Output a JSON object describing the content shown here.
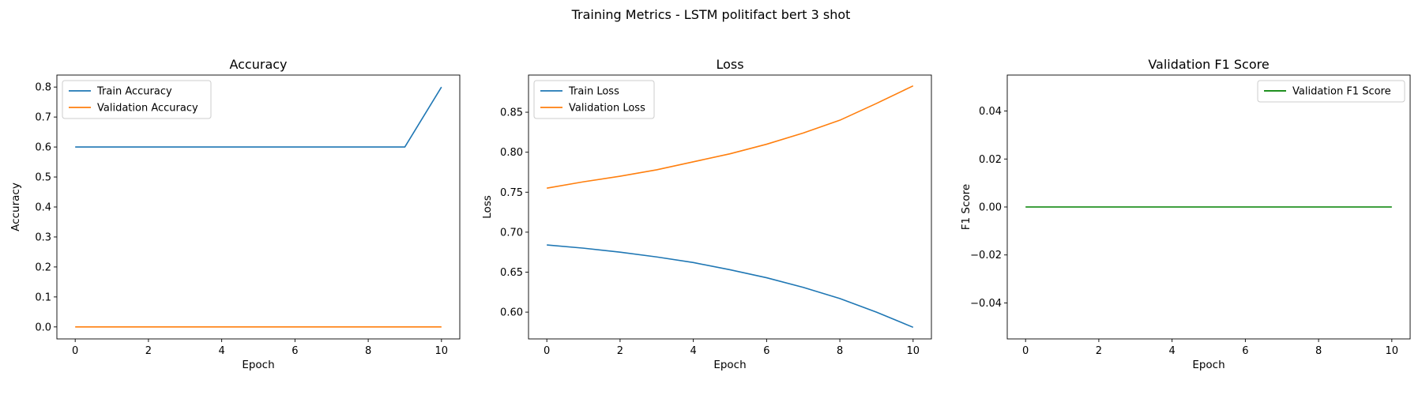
{
  "figure": {
    "suptitle": "Training Metrics - LSTM politifact bert 3 shot"
  },
  "chart_data": [
    {
      "type": "line",
      "title": "Accuracy",
      "xlabel": "Epoch",
      "ylabel": "Accuracy",
      "xlim": [
        -0.5,
        10.5
      ],
      "ylim": [
        -0.04,
        0.84
      ],
      "xticks": [
        0,
        2,
        4,
        6,
        8,
        10
      ],
      "yticks": [
        0.0,
        0.1,
        0.2,
        0.3,
        0.4,
        0.5,
        0.6,
        0.7,
        0.8
      ],
      "ytick_labels": [
        "0.0",
        "0.1",
        "0.2",
        "0.3",
        "0.4",
        "0.5",
        "0.6",
        "0.7",
        "0.8"
      ],
      "legend_loc": "upper-left",
      "grid": false,
      "x": [
        0,
        1,
        2,
        3,
        4,
        5,
        6,
        7,
        8,
        9,
        10
      ],
      "series": [
        {
          "name": "Train Accuracy",
          "color": "#1f77b4",
          "values": [
            0.6,
            0.6,
            0.6,
            0.6,
            0.6,
            0.6,
            0.6,
            0.6,
            0.6,
            0.6,
            0.8
          ]
        },
        {
          "name": "Validation Accuracy",
          "color": "#ff7f0e",
          "values": [
            0.0,
            0.0,
            0.0,
            0.0,
            0.0,
            0.0,
            0.0,
            0.0,
            0.0,
            0.0,
            0.0
          ]
        }
      ]
    },
    {
      "type": "line",
      "title": "Loss",
      "xlabel": "Epoch",
      "ylabel": "Loss",
      "xlim": [
        -0.5,
        10.5
      ],
      "ylim": [
        0.5665,
        0.8965
      ],
      "xticks": [
        0,
        2,
        4,
        6,
        8,
        10
      ],
      "yticks": [
        0.6,
        0.65,
        0.7,
        0.75,
        0.8,
        0.85
      ],
      "ytick_labels": [
        "0.60",
        "0.65",
        "0.70",
        "0.75",
        "0.80",
        "0.85"
      ],
      "legend_loc": "upper-left",
      "grid": false,
      "x": [
        0,
        1,
        2,
        3,
        4,
        5,
        6,
        7,
        8,
        9,
        10
      ],
      "series": [
        {
          "name": "Train Loss",
          "color": "#1f77b4",
          "values": [
            0.684,
            0.68,
            0.675,
            0.669,
            0.662,
            0.653,
            0.643,
            0.631,
            0.617,
            0.6,
            0.581
          ]
        },
        {
          "name": "Validation Loss",
          "color": "#ff7f0e",
          "values": [
            0.755,
            0.763,
            0.77,
            0.778,
            0.788,
            0.798,
            0.81,
            0.824,
            0.84,
            0.861,
            0.883
          ]
        }
      ]
    },
    {
      "type": "line",
      "title": "Validation F1 Score",
      "xlabel": "Epoch",
      "ylabel": "F1 Score",
      "xlim": [
        -0.5,
        10.5
      ],
      "ylim": [
        -0.055,
        0.055
      ],
      "xticks": [
        0,
        2,
        4,
        6,
        8,
        10
      ],
      "yticks": [
        -0.04,
        -0.02,
        0.0,
        0.02,
        0.04
      ],
      "ytick_labels": [
        "−0.04",
        "−0.02",
        "0.00",
        "0.02",
        "0.04"
      ],
      "legend_loc": "upper-right",
      "grid": false,
      "x": [
        0,
        1,
        2,
        3,
        4,
        5,
        6,
        7,
        8,
        9,
        10
      ],
      "series": [
        {
          "name": "Validation F1 Score",
          "color": "#008000",
          "values": [
            0,
            0,
            0,
            0,
            0,
            0,
            0,
            0,
            0,
            0,
            0
          ]
        }
      ]
    }
  ]
}
